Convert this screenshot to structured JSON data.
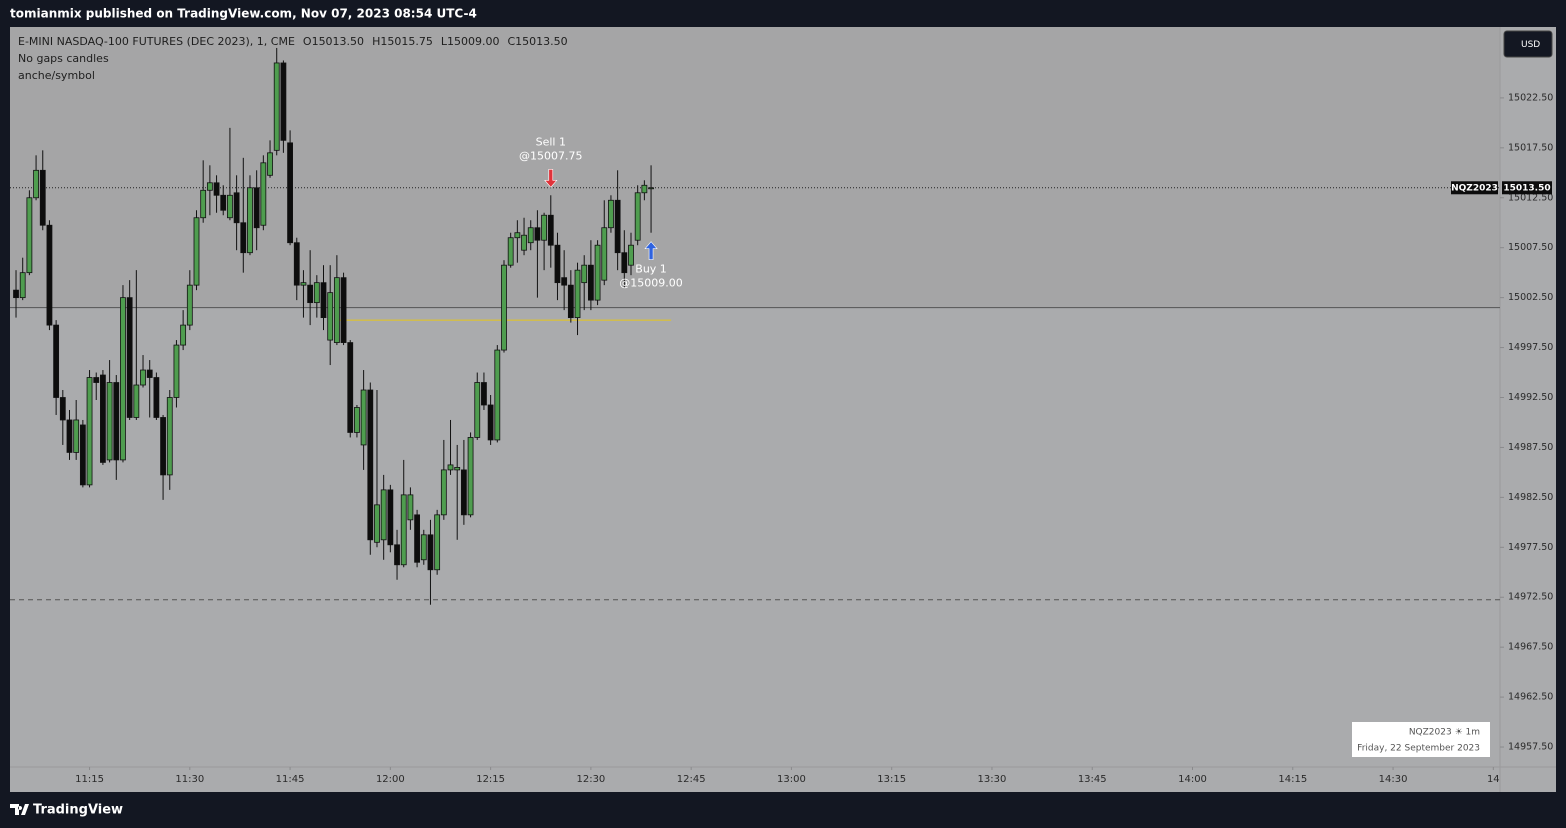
{
  "header": {
    "text": "tomianmix published on TradingView.com, Nov 07, 2023 08:54 UTC-4"
  },
  "toolbar": {
    "currency": "USD"
  },
  "watermark": {
    "line1": "NQZ2023 ☀ 1m",
    "line2": "Friday, 22 September 2023"
  },
  "footer": {
    "brand": "TradingView"
  },
  "chart_data": {
    "type": "candlestick",
    "title": "E-MINI NASDAQ-100 FUTURES (DEC 2023), 1, CME",
    "ohlc_labels": [
      "O15013.50",
      "H15015.75",
      "L15009.00",
      "C15013.50"
    ],
    "subtitles": [
      "No gaps candles",
      "anche/symbol"
    ],
    "symbol": "NQZ2023",
    "last_price": {
      "value": 15013.5,
      "label": "15013.50"
    },
    "up_color": "#4f9d4f",
    "down_color": "#0d0d0d",
    "wick_color": "#111111",
    "x": [
      664,
      665,
      666,
      667,
      668,
      669,
      670,
      671,
      672,
      673,
      674,
      675,
      676,
      677,
      678,
      679,
      680,
      681,
      682,
      683,
      684,
      685,
      686,
      687,
      688,
      689,
      690,
      691,
      692,
      693,
      694,
      695,
      696,
      697,
      698,
      699,
      700,
      701,
      702,
      703,
      704,
      705,
      706,
      707,
      708,
      709,
      710,
      711,
      712,
      713,
      714,
      715,
      716,
      717,
      718,
      719,
      720,
      721,
      722,
      723,
      724,
      725,
      726,
      727,
      728,
      729,
      730,
      731,
      732,
      733,
      734,
      735,
      736,
      737,
      738,
      739,
      740,
      741,
      742,
      743,
      744,
      745,
      746,
      747,
      748,
      749,
      750,
      751,
      752,
      753,
      754,
      755,
      756,
      757,
      758,
      759
    ],
    "open": [
      15003.25,
      15002.5,
      15005.0,
      15012.5,
      15015.25,
      15009.75,
      14999.75,
      14992.5,
      14990.25,
      14987.0,
      14989.75,
      14983.75,
      14994.5,
      14994.75,
      14986.25,
      14994.0,
      14986.25,
      15002.5,
      14990.5,
      14993.75,
      14995.25,
      14994.5,
      14990.5,
      14984.75,
      14992.5,
      14997.75,
      14999.75,
      15003.75,
      15010.5,
      15013.25,
      15014.0,
      15012.75,
      15010.5,
      15013.0,
      15010.0,
      15007.0,
      15013.5,
      15009.75,
      15014.75,
      15017.25,
      15026.0,
      15018.0,
      15008.0,
      15003.75,
      15003.75,
      15002.0,
      15004.0,
      14998.25,
      14998.0,
      15004.5,
      14998.0,
      14989.0,
      14987.75,
      14993.25,
      14978.0,
      14978.25,
      14983.25,
      14977.75,
      14975.75,
      14980.25,
      14980.75,
      14976.25,
      14978.75,
      14975.25,
      14980.75,
      14985.25,
      14985.25,
      14985.25,
      14980.75,
      14988.5,
      14994.0,
      14991.75,
      14988.25,
      14997.25,
      15005.75,
      15008.5,
      15007.25,
      15008.0,
      15009.5,
      15008.25,
      15010.75,
      15007.75,
      15004.5,
      15003.75,
      15000.5,
      15004.0,
      15005.75,
      15002.25,
      15004.25,
      15009.5,
      15012.25,
      15007.0,
      15005.75,
      15008.25,
      15013.0,
      15013.5
    ],
    "high": [
      15005.25,
      15006.5,
      15013.25,
      15016.75,
      15017.25,
      15010.25,
      15000.25,
      14993.25,
      14991.25,
      14992.25,
      14990.25,
      14995.25,
      14995.0,
      14995.25,
      14996.25,
      14994.75,
      15003.75,
      15004.25,
      15005.25,
      14996.75,
      14996.25,
      14995.0,
      14990.75,
      14993.25,
      14998.25,
      15001.25,
      15005.25,
      15011.25,
      15016.25,
      15015.75,
      15014.75,
      15013.75,
      15019.5,
      15014.75,
      15016.5,
      15014.75,
      15015.25,
      15016.75,
      15018.25,
      15027.5,
      15026.25,
      15019.25,
      15008.5,
      15005.25,
      15007.25,
      15004.75,
      15005.75,
      15005.75,
      15006.75,
      15005.0,
      14998.25,
      14991.75,
      14995.25,
      14994.0,
      14993.25,
      14984.75,
      14983.75,
      14979.25,
      14986.25,
      14983.5,
      14981.25,
      14979.25,
      14980.25,
      14981.25,
      14988.25,
      14990.25,
      14987.75,
      14988.25,
      14989.0,
      14995.0,
      14995.0,
      14992.75,
      14997.75,
      15006.25,
      15009.0,
      15010.25,
      15010.5,
      15010.25,
      15011.25,
      15011.0,
      15012.75,
      15009.0,
      15007.25,
      15005.25,
      15006.0,
      15006.75,
      15008.25,
      15008.25,
      15012.25,
      15012.75,
      15015.25,
      15009.25,
      15009.0,
      15013.75,
      15014.25,
      15015.75
    ],
    "low": [
      15000.5,
      15002.25,
      15004.75,
      15012.25,
      15009.25,
      14999.25,
      14990.75,
      14987.75,
      14986.25,
      14986.25,
      14983.5,
      14983.5,
      14992.25,
      14985.75,
      14986.0,
      14984.25,
      14986.0,
      14990.25,
      14990.25,
      14993.5,
      14990.5,
      14990.25,
      14982.25,
      14983.25,
      14991.5,
      14997.25,
      14999.25,
      15003.25,
      15010.0,
      15010.75,
      15011.0,
      15010.75,
      15010.25,
      15007.25,
      15005.0,
      15006.75,
      15007.25,
      15009.25,
      15014.5,
      15016.75,
      15017.0,
      15007.75,
      15002.25,
      15000.5,
      14999.75,
      15000.5,
      14999.25,
      14995.75,
      14997.75,
      14997.75,
      14988.5,
      14988.5,
      14985.25,
      14976.75,
      14977.5,
      14976.25,
      14977.0,
      14974.25,
      14975.5,
      14979.25,
      14975.5,
      14975.75,
      14971.75,
      14974.75,
      14980.25,
      14984.75,
      14978.25,
      14979.75,
      14980.5,
      14988.25,
      14991.25,
      14987.75,
      14988.0,
      14997.0,
      15005.5,
      15006.0,
      15006.75,
      15007.25,
      15002.5,
      15005.25,
      15005.5,
      15002.25,
      15001.25,
      15000.0,
      14998.75,
      15001.25,
      15001.25,
      15001.75,
      15003.75,
      15009.0,
      15005.25,
      15003.5,
      15004.75,
      15007.75,
      15012.25,
      15009.0
    ],
    "close": [
      15002.5,
      15005.0,
      15012.5,
      15015.25,
      15009.75,
      14999.75,
      14992.5,
      14990.25,
      14987.0,
      14990.25,
      14983.75,
      14994.5,
      14994.0,
      14986.0,
      14994.0,
      14986.25,
      15002.5,
      14990.5,
      14993.75,
      14995.25,
      14994.5,
      14990.5,
      14984.75,
      14992.5,
      14997.75,
      14999.75,
      15003.75,
      15010.5,
      15013.25,
      15014.0,
      15012.75,
      15011.25,
      15012.75,
      15010.0,
      15007.0,
      15013.5,
      15009.5,
      15016.0,
      15017.0,
      15026.0,
      15018.25,
      15008.0,
      15003.75,
      15004.0,
      15002.0,
      15004.0,
      15000.5,
      15003.0,
      15004.5,
      14998.0,
      14989.0,
      14991.5,
      14993.25,
      14978.25,
      14981.75,
      14983.25,
      14977.75,
      14975.75,
      14982.75,
      14982.75,
      14976.0,
      14978.75,
      14975.25,
      14980.75,
      14985.25,
      14985.75,
      14985.5,
      14980.75,
      14988.5,
      14994.0,
      14991.75,
      14988.25,
      14997.25,
      15005.75,
      15008.5,
      15009.0,
      15008.75,
      15009.5,
      15008.25,
      15010.75,
      15007.75,
      15004.0,
      15003.75,
      15000.5,
      15005.25,
      15005.75,
      15002.25,
      15007.75,
      15009.5,
      15012.25,
      15007.0,
      15005.0,
      15007.75,
      15013.0,
      15013.75,
      15013.5
    ],
    "xlim": [
      663.1,
      886
    ],
    "ylim": [
      14955.5,
      15029.6
    ],
    "xticks": [
      {
        "value": 675,
        "label": "11:15"
      },
      {
        "value": 690,
        "label": "11:30"
      },
      {
        "value": 705,
        "label": "11:45"
      },
      {
        "value": 720,
        "label": "12:00"
      },
      {
        "value": 735,
        "label": "12:15"
      },
      {
        "value": 750,
        "label": "12:30"
      },
      {
        "value": 765,
        "label": "12:45"
      },
      {
        "value": 780,
        "label": "13:00"
      },
      {
        "value": 795,
        "label": "13:15"
      },
      {
        "value": 810,
        "label": "13:30"
      },
      {
        "value": 825,
        "label": "13:45"
      },
      {
        "value": 840,
        "label": "14:00"
      },
      {
        "value": 855,
        "label": "14:15"
      },
      {
        "value": 870,
        "label": "14:30"
      },
      {
        "value": 885,
        "label": "14"
      }
    ],
    "yticks": [
      {
        "value": 14957.5,
        "label": "14957.50"
      },
      {
        "value": 14962.5,
        "label": "14962.50"
      },
      {
        "value": 14967.5,
        "label": "14967.50"
      },
      {
        "value": 14972.5,
        "label": "14972.50"
      },
      {
        "value": 14977.5,
        "label": "14977.50"
      },
      {
        "value": 14982.5,
        "label": "14982.50"
      },
      {
        "value": 14987.5,
        "label": "14987.50"
      },
      {
        "value": 14992.5,
        "label": "14992.50"
      },
      {
        "value": 14997.5,
        "label": "14997.50"
      },
      {
        "value": 15002.5,
        "label": "15002.50"
      },
      {
        "value": 15007.5,
        "label": "15007.50"
      },
      {
        "value": 15012.5,
        "label": "15012.50"
      },
      {
        "value": 15017.5,
        "label": "15017.50"
      },
      {
        "value": 15022.5,
        "label": "15022.50"
      }
    ],
    "levels": [
      {
        "value": 15013.5,
        "color": "#222222",
        "dash": "1 2"
      },
      {
        "value": 15001.5,
        "color": "#555555",
        "dash": "none",
        "shade_above": "#a5a5a6"
      },
      {
        "value": 15000.25,
        "color": "#e6c619",
        "dash": "none",
        "x_range": [
          712,
          762
        ]
      },
      {
        "value": 14972.25,
        "color": "#555555",
        "dash": "5 4"
      }
    ],
    "annotations": [
      {
        "x": 744,
        "side": "sell",
        "label": "Sell 1",
        "price_label": "@15007.75",
        "color": "#e0323a"
      },
      {
        "x": 759,
        "side": "buy",
        "label": "Buy 1",
        "price_label": "@15009.00",
        "color": "#2f63e0"
      }
    ]
  }
}
